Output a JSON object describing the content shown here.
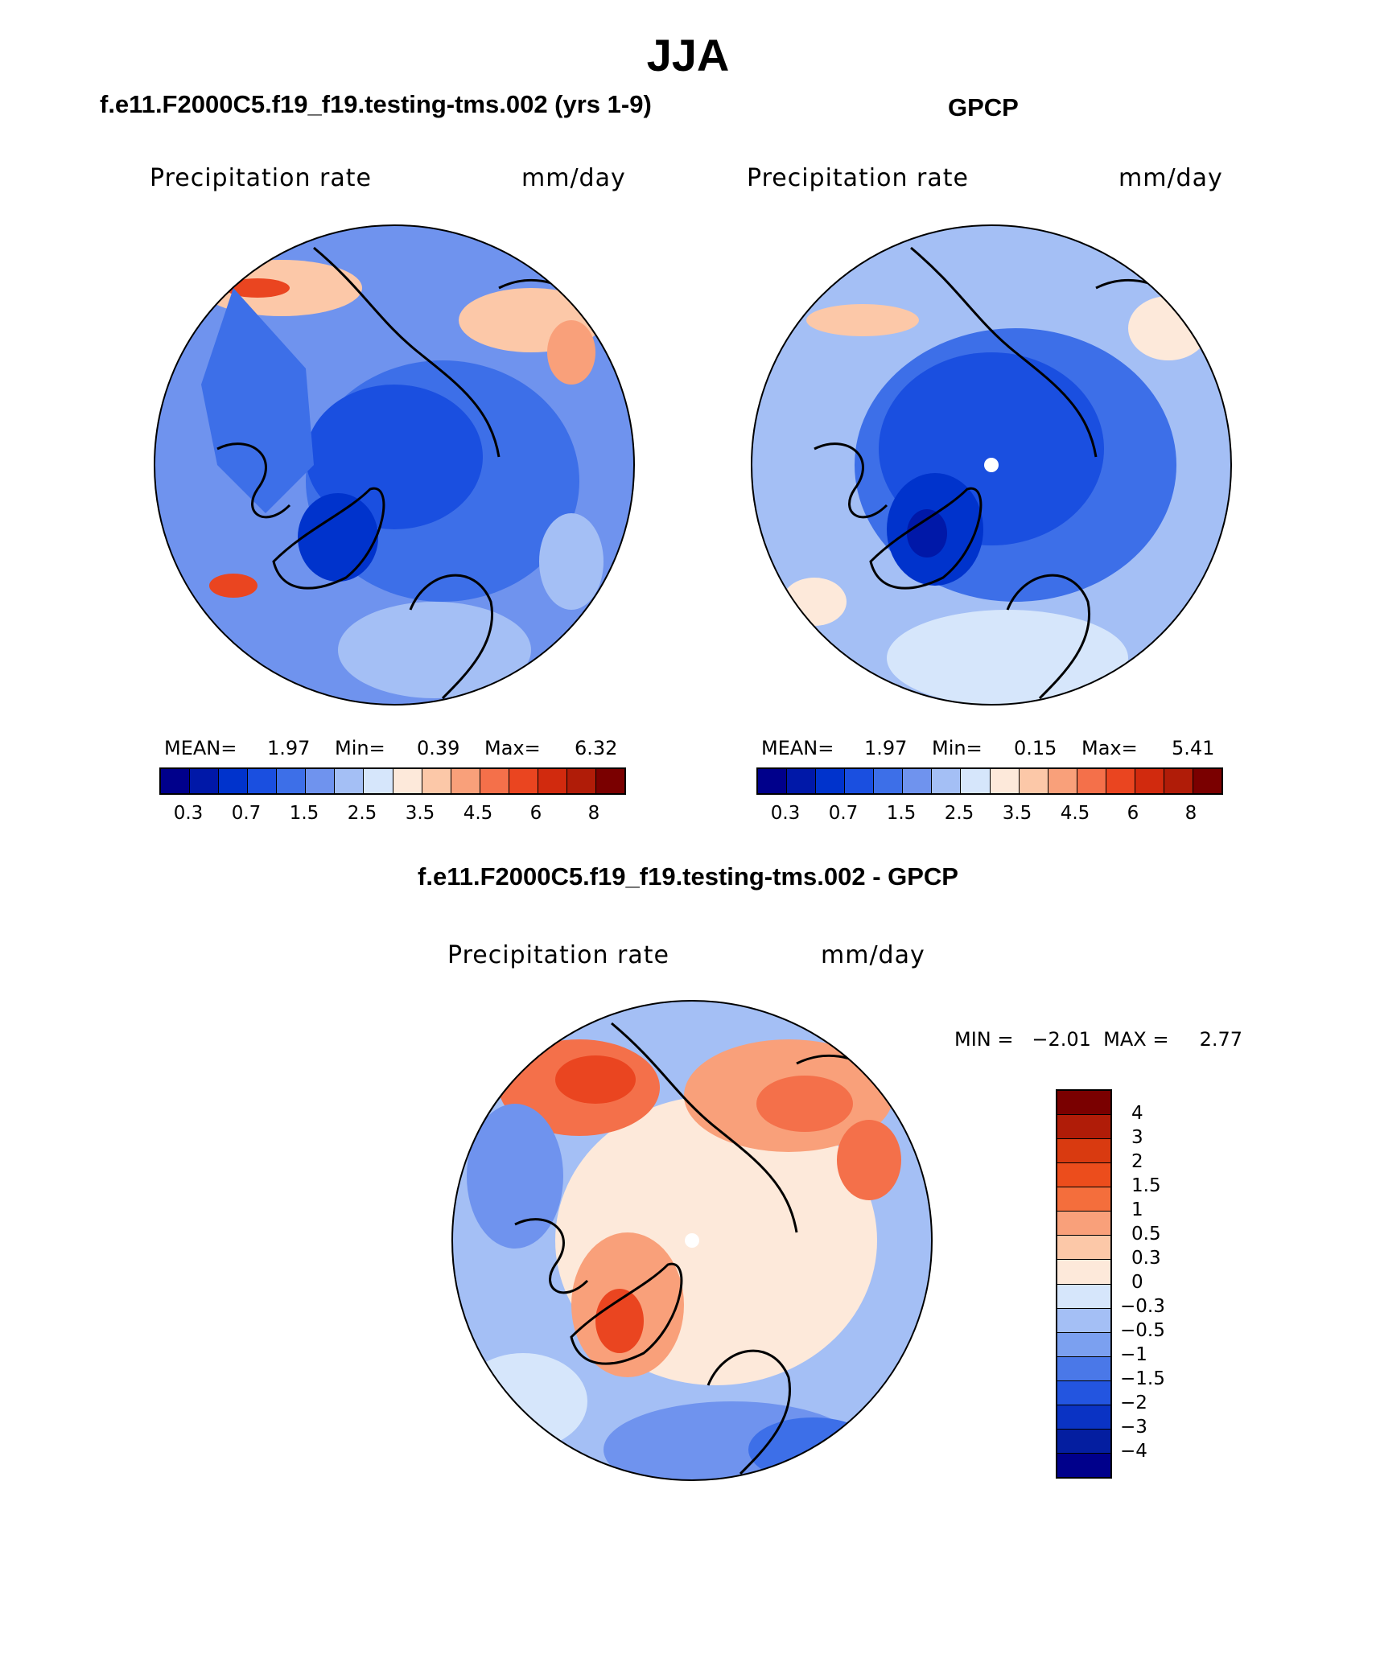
{
  "main_title": "JJA",
  "panels": {
    "model": {
      "title": "f.e11.F2000C5.f19_f19.testing-tms.002 (yrs 1-9)",
      "variable": "Precipitation rate",
      "units": "mm/day",
      "mean_label": "MEAN=",
      "mean": "1.97",
      "min_label": "Min=",
      "min": "0.39",
      "max_label": "Max=",
      "max": "6.32"
    },
    "obs": {
      "title": "GPCP",
      "variable": "Precipitation rate",
      "units": "mm/day",
      "mean_label": "MEAN=",
      "mean": "1.97",
      "min_label": "Min=",
      "min": "0.15",
      "max_label": "Max=",
      "max": "5.41"
    },
    "diff": {
      "title": "f.e11.F2000C5.f19_f19.testing-tms.002 - GPCP",
      "variable": "Precipitation rate",
      "units": "mm/day",
      "minmax_text": "MIN =   −2.01  MAX =     2.77"
    }
  },
  "colorbar_main": {
    "colors": [
      "#00008b",
      "#0018a8",
      "#0033cc",
      "#1a4fe0",
      "#3d6fe8",
      "#6f93ee",
      "#a4bff5",
      "#d6e6fb",
      "#fde9da",
      "#fcc8a8",
      "#f9a07a",
      "#f4704a",
      "#ea4520",
      "#d12a0e",
      "#b01c08",
      "#7a0000"
    ],
    "tick_labels": [
      "0.3",
      "0.7",
      "1.5",
      "2.5",
      "3.5",
      "4.5",
      "6",
      "8"
    ]
  },
  "colorbar_diff": {
    "colors_top_to_bottom": [
      "#7a0000",
      "#b01c08",
      "#d93a10",
      "#ec4d1c",
      "#f46e3c",
      "#f9a07a",
      "#fcc8a8",
      "#fde9da",
      "#d6e6fb",
      "#a4bff5",
      "#7ba0f0",
      "#4a78e8",
      "#2355e0",
      "#0a33c4",
      "#041ea0",
      "#00008b"
    ],
    "tick_labels": [
      "4",
      "3",
      "2",
      "1.5",
      "1",
      "0.5",
      "0.3",
      "0",
      "−0.3",
      "−0.5",
      "−1",
      "−1.5",
      "−2",
      "−3",
      "−4"
    ]
  }
}
